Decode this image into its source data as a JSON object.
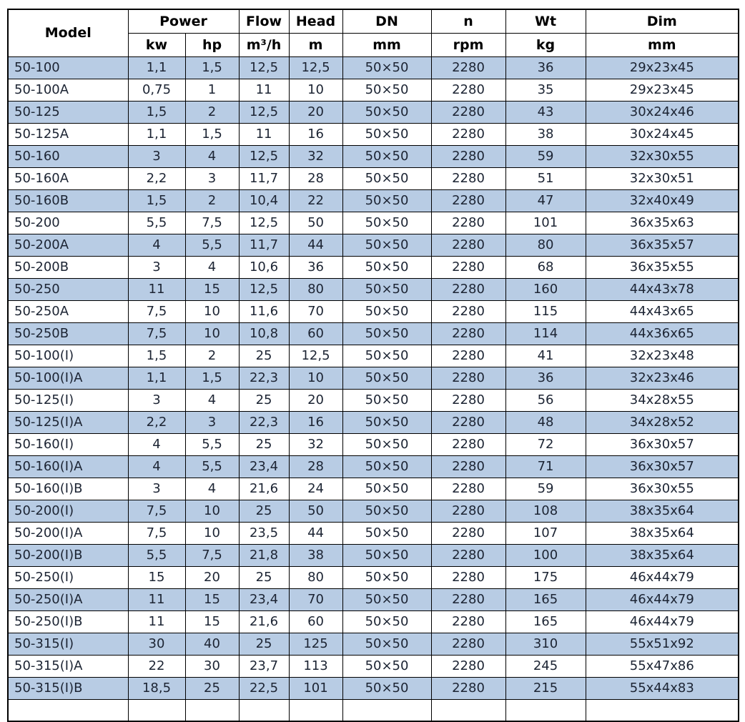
{
  "colors": {
    "row_stripe": "#b8cce4",
    "row_plain": "#ffffff",
    "border": "#000000",
    "text": "#1c2433",
    "header_text": "#000000"
  },
  "chart_data": {
    "type": "table",
    "title": "",
    "header": {
      "model": "Model",
      "power": "Power",
      "kw": "kw",
      "hp": "hp",
      "flow": "Flow",
      "flow_unit": "m³/h",
      "head": "Head",
      "head_unit": "m",
      "dn": "DN",
      "dn_unit": "mm",
      "n": "n",
      "n_unit": "rpm",
      "wt": "Wt",
      "wt_unit": "kg",
      "dim": "Dim",
      "dim_unit": "mm"
    },
    "columns": [
      "Model",
      "Power (kw)",
      "Power (hp)",
      "Flow (m³/h)",
      "Head (m)",
      "DN (mm)",
      "n (rpm)",
      "Wt (kg)",
      "Dim (mm)"
    ],
    "column_keys": [
      "model",
      "power-kw",
      "power-hp",
      "flow",
      "head",
      "dn",
      "n",
      "wt",
      "dim"
    ],
    "rows": [
      [
        "50-100",
        "1,1",
        "1,5",
        "12,5",
        "12,5",
        "50×50",
        "2280",
        "36",
        "29x23x45"
      ],
      [
        "50-100A",
        "0,75",
        "1",
        "11",
        "10",
        "50×50",
        "2280",
        "35",
        "29x23x45"
      ],
      [
        "50-125",
        "1,5",
        "2",
        "12,5",
        "20",
        "50×50",
        "2280",
        "43",
        "30x24x46"
      ],
      [
        "50-125A",
        "1,1",
        "1,5",
        "11",
        "16",
        "50×50",
        "2280",
        "38",
        "30x24x45"
      ],
      [
        "50-160",
        "3",
        "4",
        "12,5",
        "32",
        "50×50",
        "2280",
        "59",
        "32x30x55"
      ],
      [
        "50-160A",
        "2,2",
        "3",
        "11,7",
        "28",
        "50×50",
        "2280",
        "51",
        "32x30x51"
      ],
      [
        "50-160B",
        "1,5",
        "2",
        "10,4",
        "22",
        "50×50",
        "2280",
        "47",
        "32x40x49"
      ],
      [
        "50-200",
        "5,5",
        "7,5",
        "12,5",
        "50",
        "50×50",
        "2280",
        "101",
        "36x35x63"
      ],
      [
        "50-200A",
        "4",
        "5,5",
        "11,7",
        "44",
        "50×50",
        "2280",
        "80",
        "36x35x57"
      ],
      [
        "50-200B",
        "3",
        "4",
        "10,6",
        "36",
        "50×50",
        "2280",
        "68",
        "36x35x55"
      ],
      [
        "50-250",
        "11",
        "15",
        "12,5",
        "80",
        "50×50",
        "2280",
        "160",
        "44x43x78"
      ],
      [
        "50-250A",
        "7,5",
        "10",
        "11,6",
        "70",
        "50×50",
        "2280",
        "115",
        "44x43x65"
      ],
      [
        "50-250B",
        "7,5",
        "10",
        "10,8",
        "60",
        "50×50",
        "2280",
        "114",
        "44x36x65"
      ],
      [
        "50-100(I)",
        "1,5",
        "2",
        "25",
        "12,5",
        "50×50",
        "2280",
        "41",
        "32x23x48"
      ],
      [
        "50-100(I)A",
        "1,1",
        "1,5",
        "22,3",
        "10",
        "50×50",
        "2280",
        "36",
        "32x23x46"
      ],
      [
        "50-125(I)",
        "3",
        "4",
        "25",
        "20",
        "50×50",
        "2280",
        "56",
        "34x28x55"
      ],
      [
        "50-125(I)A",
        "2,2",
        "3",
        "22,3",
        "16",
        "50×50",
        "2280",
        "48",
        "34x28x52"
      ],
      [
        "50-160(I)",
        "4",
        "5,5",
        "25",
        "32",
        "50×50",
        "2280",
        "72",
        "36x30x57"
      ],
      [
        "50-160(I)A",
        "4",
        "5,5",
        "23,4",
        "28",
        "50×50",
        "2280",
        "71",
        "36x30x57"
      ],
      [
        "50-160(I)B",
        "3",
        "4",
        "21,6",
        "24",
        "50×50",
        "2280",
        "59",
        "36x30x55"
      ],
      [
        "50-200(I)",
        "7,5",
        "10",
        "25",
        "50",
        "50×50",
        "2280",
        "108",
        "38x35x64"
      ],
      [
        "50-200(I)A",
        "7,5",
        "10",
        "23,5",
        "44",
        "50×50",
        "2280",
        "107",
        "38x35x64"
      ],
      [
        "50-200(I)B",
        "5,5",
        "7,5",
        "21,8",
        "38",
        "50×50",
        "2280",
        "100",
        "38x35x64"
      ],
      [
        "50-250(I)",
        "15",
        "20",
        "25",
        "80",
        "50×50",
        "2280",
        "175",
        "46x44x79"
      ],
      [
        "50-250(I)A",
        "11",
        "15",
        "23,4",
        "70",
        "50×50",
        "2280",
        "165",
        "46x44x79"
      ],
      [
        "50-250(I)B",
        "11",
        "15",
        "21,6",
        "60",
        "50×50",
        "2280",
        "165",
        "46x44x79"
      ],
      [
        "50-315(I)",
        "30",
        "40",
        "25",
        "125",
        "50×50",
        "2280",
        "310",
        "55x51x92"
      ],
      [
        "50-315(I)A",
        "22",
        "30",
        "23,7",
        "113",
        "50×50",
        "2280",
        "245",
        "55x47x86"
      ],
      [
        "50-315(I)B",
        "18,5",
        "25",
        "22,5",
        "101",
        "50×50",
        "2280",
        "215",
        "55x44x83"
      ]
    ]
  }
}
